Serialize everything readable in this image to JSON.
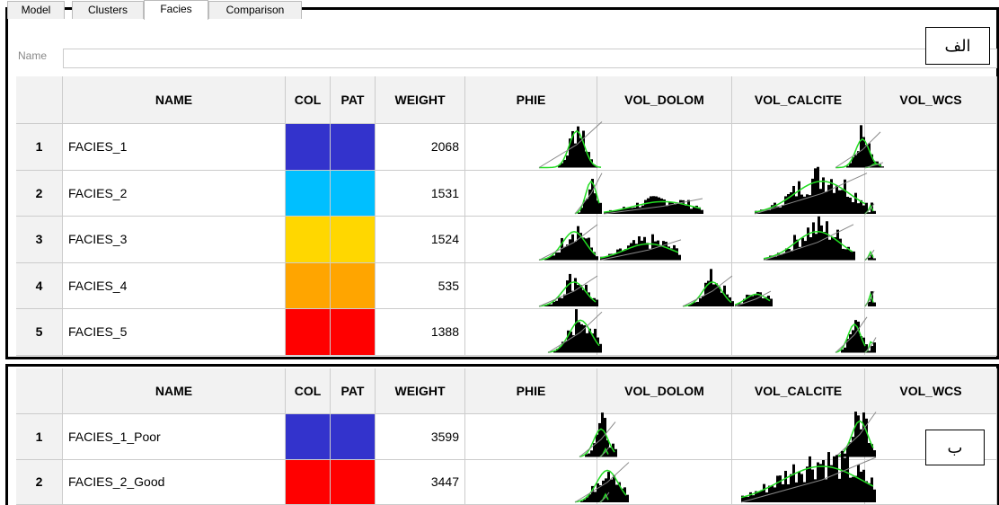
{
  "tabs": [
    "Model",
    "Clusters",
    "Facies",
    "Comparison"
  ],
  "name_label": "Name",
  "panel_a": {
    "label": "الف",
    "columns": [
      "NAME",
      "COL",
      "PAT",
      "WEIGHT",
      "PHIE",
      "VOL_DOLOM",
      "VOL_CALCITE",
      "VOL_WCS"
    ],
    "rows": [
      {
        "index": 1,
        "name": "FACIES_1",
        "color": "#3333cc",
        "weight": 2068
      },
      {
        "index": 2,
        "name": "FACIES_2",
        "color": "#00bfff",
        "weight": 1531
      },
      {
        "index": 3,
        "name": "FACIES_3",
        "color": "#ffd700",
        "weight": 1524
      },
      {
        "index": 4,
        "name": "FACIES_4",
        "color": "#ffa500",
        "weight": 535
      },
      {
        "index": 5,
        "name": "FACIES_5",
        "color": "#ff0000",
        "weight": 1388
      }
    ]
  },
  "panel_b": {
    "label": "ب",
    "columns": [
      "NAME",
      "COL",
      "PAT",
      "WEIGHT",
      "PHIE",
      "VOL_DOLOM",
      "VOL_CALCITE",
      "VOL_WCS"
    ],
    "rows": [
      {
        "index": 1,
        "name": "FACIES_1_Poor",
        "color": "#3333cc",
        "weight": 3599
      },
      {
        "index": 2,
        "name": "FACIES_2_Good",
        "color": "#ff0000",
        "weight": 3447
      }
    ]
  }
}
